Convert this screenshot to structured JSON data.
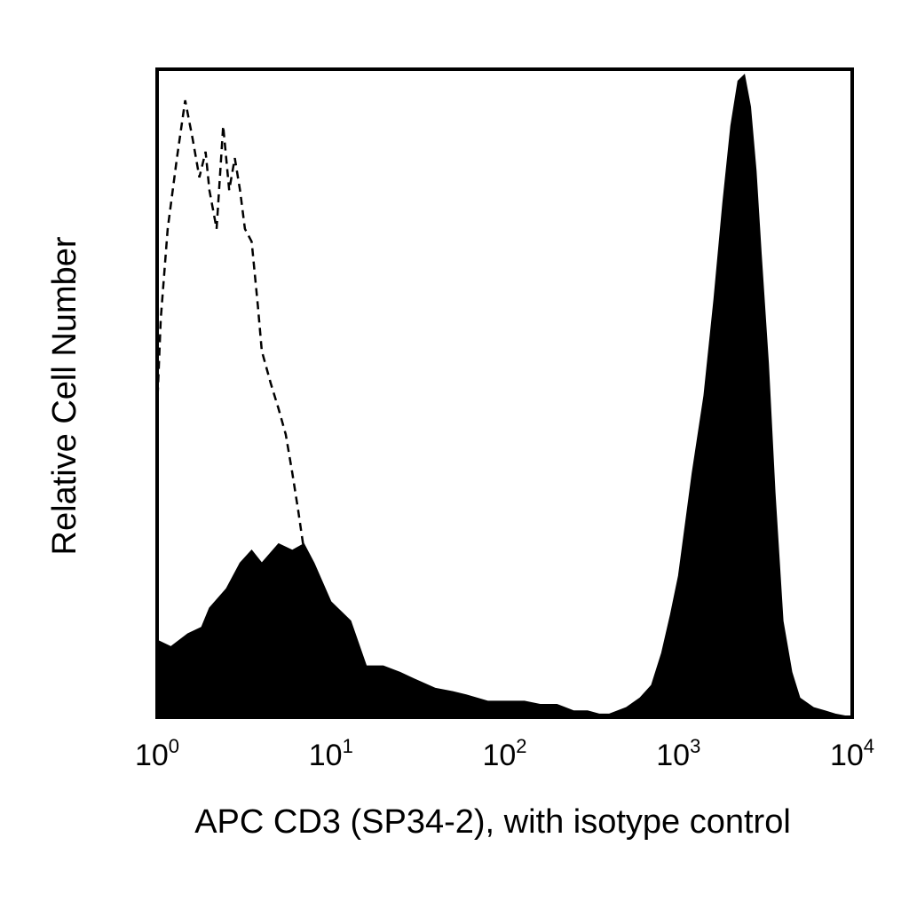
{
  "chart_data": {
    "type": "area",
    "xlabel": "APC CD3 (SP34-2), with isotype control",
    "ylabel": "Relative Cell Number",
    "x_scale": "log",
    "xlim": [
      1,
      10000
    ],
    "ylim": [
      0,
      100
    ],
    "grid": false,
    "y_ticks_shown": false,
    "x_ticks": [
      {
        "base": "10",
        "exp": "0",
        "value": 1
      },
      {
        "base": "10",
        "exp": "1",
        "value": 10
      },
      {
        "base": "10",
        "exp": "2",
        "value": 100
      },
      {
        "base": "10",
        "exp": "3",
        "value": 1000
      },
      {
        "base": "10",
        "exp": "4",
        "value": 10000
      }
    ],
    "colors": {
      "sample": "#000000",
      "isotype": "#000000",
      "frame": "#000000"
    },
    "series": [
      {
        "style": "filled",
        "x": [
          1.0,
          1.2,
          1.5,
          1.8,
          2.0,
          2.5,
          3.0,
          3.5,
          4.0,
          5.0,
          6.0,
          7.0,
          8.0,
          10,
          13,
          16,
          20,
          25,
          30,
          40,
          50,
          60,
          80,
          100,
          130,
          160,
          200,
          250,
          300,
          350,
          400,
          500,
          600,
          700,
          800,
          900,
          1000,
          1200,
          1400,
          1600,
          1800,
          2000,
          2200,
          2400,
          2600,
          2800,
          3000,
          3300,
          3600,
          4000,
          4500,
          5000,
          6000,
          7000,
          8000,
          10000
        ],
        "y": [
          12,
          11,
          13,
          14,
          17,
          20,
          24,
          26,
          24,
          27,
          26,
          27,
          24,
          18,
          15,
          8,
          8,
          7,
          6,
          4.5,
          4,
          3.5,
          2.5,
          2.5,
          2.5,
          2.0,
          2.0,
          1.0,
          1.0,
          0.5,
          0.5,
          1.5,
          3,
          5,
          10,
          16,
          22,
          38,
          50,
          65,
          80,
          92,
          99,
          100,
          95,
          85,
          72,
          55,
          35,
          15,
          7,
          3,
          1.5,
          1,
          0.5,
          0
        ]
      },
      {
        "style": "dashed",
        "x": [
          1.0,
          1.05,
          1.15,
          1.3,
          1.45,
          1.6,
          1.75,
          1.9,
          2.0,
          2.2,
          2.4,
          2.6,
          2.8,
          3.0,
          3.2,
          3.5,
          3.8,
          4.0,
          4.5,
          5.0,
          5.5,
          6.0,
          6.5,
          7.0,
          7.5,
          8.0,
          8.5
        ],
        "y": [
          48,
          62,
          76,
          87,
          96,
          90,
          84,
          88,
          82,
          76,
          92,
          82,
          87,
          82,
          76,
          74,
          64,
          57,
          52,
          48,
          44,
          38,
          32,
          26,
          20,
          14,
          10
        ]
      }
    ]
  }
}
